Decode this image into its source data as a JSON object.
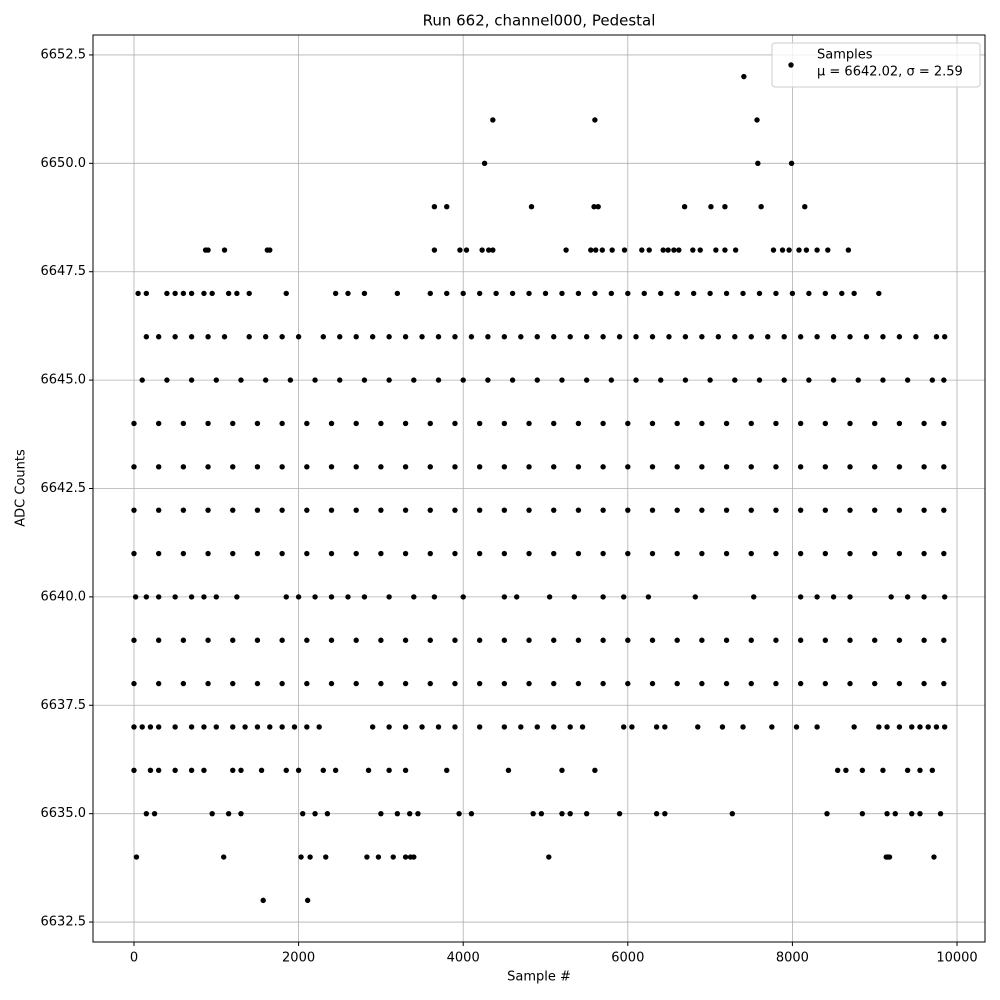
{
  "chart_data": {
    "type": "scatter",
    "title": "Run 662, channel000, Pedestal",
    "x_label": "Sample #",
    "y_label": "ADC Counts",
    "xlim": [
      -498,
      10340
    ],
    "ylim": [
      6632.04,
      6652.96
    ],
    "xticks": [
      0,
      2000,
      4000,
      6000,
      8000,
      10000
    ],
    "yticks": [
      6632.5,
      {
        "value": 6635,
        "label": "6635.0"
      },
      6637.5,
      {
        "value": 6640,
        "label": "6640.0"
      },
      6642.5,
      {
        "value": 6645,
        "label": "6645.0"
      },
      6647.5,
      {
        "value": 6650,
        "label": "6650.0"
      },
      6652.5
    ],
    "grid": true,
    "legend_position": "upper right",
    "legend_stats": "μ = 6642.02, σ = 2.59",
    "series": [
      {
        "name": "Samples",
        "color": "#000000",
        "x": [
          7410,
          4360,
          5600,
          7570,
          4260,
          7580,
          7990,
          3650,
          3800,
          4830,
          5590,
          5640,
          6690,
          7010,
          7180,
          7620,
          8150,
          870,
          900,
          1100,
          1620,
          1650,
          3650,
          3960,
          4040,
          4230,
          4310,
          4360,
          5250,
          5550,
          5610,
          5690,
          5810,
          5960,
          6170,
          6260,
          6430,
          6490,
          6560,
          6620,
          6790,
          6880,
          7070,
          7180,
          7310,
          7770,
          7880,
          7960,
          8080,
          8170,
          8300,
          8430,
          8680,
          50,
          150,
          400,
          500,
          600,
          700,
          850,
          950,
          1150,
          1250,
          1400,
          1850,
          2450,
          2600,
          2800,
          3200,
          3600,
          3800,
          4000,
          4200,
          4400,
          4600,
          4800,
          5000,
          5200,
          5400,
          5600,
          5800,
          6000,
          6200,
          6400,
          6600,
          6800,
          7000,
          7200,
          7400,
          7600,
          7800,
          8000,
          8200,
          8400,
          8600,
          8750,
          9050,
          150,
          300,
          500,
          700,
          900,
          1100,
          1400,
          1600,
          1800,
          2000,
          2300,
          2500,
          2700,
          2900,
          3100,
          3300,
          3500,
          3700,
          3900,
          4100,
          4300,
          4500,
          4700,
          4900,
          5100,
          5300,
          5500,
          5700,
          5900,
          6100,
          6300,
          6500,
          6700,
          6900,
          7100,
          7300,
          7500,
          7700,
          7900,
          8100,
          8300,
          8500,
          8700,
          8900,
          9100,
          9300,
          9500,
          9750,
          9850,
          100,
          400,
          700,
          1000,
          1300,
          1600,
          1900,
          2200,
          2500,
          2800,
          3100,
          3400,
          3700,
          4000,
          4300,
          4600,
          4900,
          5200,
          5500,
          5800,
          6100,
          6400,
          6700,
          7000,
          7300,
          7600,
          7900,
          8200,
          8500,
          8800,
          9100,
          9400,
          9700,
          9840,
          0,
          300,
          600,
          900,
          1200,
          1500,
          1800,
          2100,
          2400,
          2700,
          3000,
          3300,
          3600,
          3900,
          4200,
          4500,
          4800,
          5100,
          5400,
          5700,
          6000,
          6300,
          6600,
          6900,
          7200,
          7500,
          7800,
          8100,
          8400,
          8700,
          9000,
          9300,
          9600,
          9840,
          0,
          300,
          600,
          900,
          1200,
          1500,
          1800,
          2100,
          2400,
          2700,
          3000,
          3300,
          3600,
          3900,
          4200,
          4500,
          4800,
          5100,
          5400,
          5700,
          6000,
          6300,
          6600,
          6900,
          7200,
          7500,
          7800,
          8100,
          8400,
          8700,
          9000,
          9300,
          9600,
          9840,
          0,
          300,
          600,
          900,
          1200,
          1500,
          1800,
          2100,
          2400,
          2700,
          3000,
          3300,
          3600,
          3900,
          4200,
          4500,
          4800,
          5100,
          5400,
          5700,
          6000,
          6300,
          6600,
          6900,
          7200,
          7500,
          7800,
          8100,
          8400,
          8700,
          9000,
          9300,
          9600,
          9840,
          0,
          300,
          600,
          900,
          1200,
          1500,
          1800,
          2100,
          2400,
          2700,
          3000,
          3300,
          3600,
          3900,
          4200,
          4500,
          4800,
          5100,
          5400,
          5700,
          6000,
          6300,
          6600,
          6900,
          7200,
          7500,
          7800,
          8100,
          8400,
          8700,
          9000,
          9300,
          9600,
          9840,
          20,
          150,
          300,
          500,
          700,
          850,
          1000,
          1250,
          1850,
          2000,
          2200,
          2400,
          2600,
          2800,
          3100,
          3400,
          3650,
          4000,
          4500,
          4650,
          5050,
          5350,
          5700,
          5950,
          6250,
          6820,
          7530,
          8100,
          8300,
          8500,
          8700,
          9200,
          9400,
          9600,
          9850,
          0,
          300,
          600,
          900,
          1200,
          1500,
          1800,
          2100,
          2400,
          2700,
          3000,
          3300,
          3600,
          3900,
          4200,
          4500,
          4800,
          5100,
          5400,
          5700,
          6000,
          6300,
          6600,
          6900,
          7200,
          7500,
          7800,
          8100,
          8400,
          8700,
          9000,
          9300,
          9600,
          9840,
          0,
          300,
          600,
          900,
          1200,
          1500,
          1800,
          2100,
          2400,
          2700,
          3000,
          3300,
          3600,
          3900,
          4200,
          4500,
          4800,
          5100,
          5400,
          5700,
          6000,
          6300,
          6600,
          6900,
          7200,
          7500,
          7800,
          8100,
          8400,
          8700,
          9000,
          9300,
          9600,
          9840,
          0,
          100,
          200,
          300,
          500,
          700,
          850,
          1000,
          1200,
          1350,
          1500,
          1650,
          1800,
          1950,
          2100,
          2250,
          2900,
          3100,
          3300,
          3500,
          3700,
          3900,
          4200,
          4500,
          4700,
          4900,
          5100,
          5300,
          5450,
          5950,
          6050,
          6350,
          6450,
          6850,
          7150,
          7400,
          7750,
          8050,
          8300,
          8750,
          9050,
          9150,
          9300,
          9450,
          9550,
          9650,
          9750,
          9850,
          0,
          200,
          300,
          500,
          700,
          850,
          1200,
          1300,
          1550,
          1850,
          2000,
          2300,
          2450,
          2850,
          3100,
          3300,
          3800,
          4550,
          5200,
          5600,
          8550,
          8650,
          8850,
          9100,
          9400,
          9550,
          9700,
          150,
          250,
          950,
          1150,
          1300,
          2050,
          2200,
          2350,
          3000,
          3200,
          3350,
          3450,
          3950,
          4100,
          4850,
          4950,
          5200,
          5300,
          5500,
          5900,
          6350,
          6450,
          7270,
          8420,
          8850,
          9150,
          9250,
          9450,
          9550,
          9800,
          30,
          1090,
          2030,
          2140,
          2330,
          2830,
          2970,
          3150,
          3300,
          3360,
          3400,
          5040,
          9140,
          9160,
          9180,
          9720,
          1570,
          2110
        ],
        "values": [
          6652,
          6651,
          6651,
          6651,
          6650,
          6650,
          6650,
          6649,
          6649,
          6649,
          6649,
          6649,
          6649,
          6649,
          6649,
          6649,
          6649,
          6648,
          6648,
          6648,
          6648,
          6648,
          6648,
          6648,
          6648,
          6648,
          6648,
          6648,
          6648,
          6648,
          6648,
          6648,
          6648,
          6648,
          6648,
          6648,
          6648,
          6648,
          6648,
          6648,
          6648,
          6648,
          6648,
          6648,
          6648,
          6648,
          6648,
          6648,
          6648,
          6648,
          6648,
          6648,
          6648,
          6647,
          6647,
          6647,
          6647,
          6647,
          6647,
          6647,
          6647,
          6647,
          6647,
          6647,
          6647,
          6647,
          6647,
          6647,
          6647,
          6647,
          6647,
          6647,
          6647,
          6647,
          6647,
          6647,
          6647,
          6647,
          6647,
          6647,
          6647,
          6647,
          6647,
          6647,
          6647,
          6647,
          6647,
          6647,
          6647,
          6647,
          6647,
          6647,
          6647,
          6647,
          6647,
          6647,
          6647,
          6646,
          6646,
          6646,
          6646,
          6646,
          6646,
          6646,
          6646,
          6646,
          6646,
          6646,
          6646,
          6646,
          6646,
          6646,
          6646,
          6646,
          6646,
          6646,
          6646,
          6646,
          6646,
          6646,
          6646,
          6646,
          6646,
          6646,
          6646,
          6646,
          6646,
          6646,
          6646,
          6646,
          6646,
          6646,
          6646,
          6646,
          6646,
          6646,
          6646,
          6646,
          6646,
          6646,
          6646,
          6646,
          6646,
          6646,
          6646,
          6646,
          6645,
          6645,
          6645,
          6645,
          6645,
          6645,
          6645,
          6645,
          6645,
          6645,
          6645,
          6645,
          6645,
          6645,
          6645,
          6645,
          6645,
          6645,
          6645,
          6645,
          6645,
          6645,
          6645,
          6645,
          6645,
          6645,
          6645,
          6645,
          6645,
          6645,
          6645,
          6645,
          6645,
          6645,
          6644,
          6644,
          6644,
          6644,
          6644,
          6644,
          6644,
          6644,
          6644,
          6644,
          6644,
          6644,
          6644,
          6644,
          6644,
          6644,
          6644,
          6644,
          6644,
          6644,
          6644,
          6644,
          6644,
          6644,
          6644,
          6644,
          6644,
          6644,
          6644,
          6644,
          6644,
          6644,
          6644,
          6644,
          6643,
          6643,
          6643,
          6643,
          6643,
          6643,
          6643,
          6643,
          6643,
          6643,
          6643,
          6643,
          6643,
          6643,
          6643,
          6643,
          6643,
          6643,
          6643,
          6643,
          6643,
          6643,
          6643,
          6643,
          6643,
          6643,
          6643,
          6643,
          6643,
          6643,
          6643,
          6643,
          6643,
          6643,
          6642,
          6642,
          6642,
          6642,
          6642,
          6642,
          6642,
          6642,
          6642,
          6642,
          6642,
          6642,
          6642,
          6642,
          6642,
          6642,
          6642,
          6642,
          6642,
          6642,
          6642,
          6642,
          6642,
          6642,
          6642,
          6642,
          6642,
          6642,
          6642,
          6642,
          6642,
          6642,
          6642,
          6642,
          6641,
          6641,
          6641,
          6641,
          6641,
          6641,
          6641,
          6641,
          6641,
          6641,
          6641,
          6641,
          6641,
          6641,
          6641,
          6641,
          6641,
          6641,
          6641,
          6641,
          6641,
          6641,
          6641,
          6641,
          6641,
          6641,
          6641,
          6641,
          6641,
          6641,
          6641,
          6641,
          6641,
          6641,
          6640,
          6640,
          6640,
          6640,
          6640,
          6640,
          6640,
          6640,
          6640,
          6640,
          6640,
          6640,
          6640,
          6640,
          6640,
          6640,
          6640,
          6640,
          6640,
          6640,
          6640,
          6640,
          6640,
          6640,
          6640,
          6640,
          6640,
          6640,
          6640,
          6640,
          6640,
          6640,
          6640,
          6640,
          6640,
          6639,
          6639,
          6639,
          6639,
          6639,
          6639,
          6639,
          6639,
          6639,
          6639,
          6639,
          6639,
          6639,
          6639,
          6639,
          6639,
          6639,
          6639,
          6639,
          6639,
          6639,
          6639,
          6639,
          6639,
          6639,
          6639,
          6639,
          6639,
          6639,
          6639,
          6639,
          6639,
          6639,
          6639,
          6638,
          6638,
          6638,
          6638,
          6638,
          6638,
          6638,
          6638,
          6638,
          6638,
          6638,
          6638,
          6638,
          6638,
          6638,
          6638,
          6638,
          6638,
          6638,
          6638,
          6638,
          6638,
          6638,
          6638,
          6638,
          6638,
          6638,
          6638,
          6638,
          6638,
          6638,
          6638,
          6638,
          6638,
          6637,
          6637,
          6637,
          6637,
          6637,
          6637,
          6637,
          6637,
          6637,
          6637,
          6637,
          6637,
          6637,
          6637,
          6637,
          6637,
          6637,
          6637,
          6637,
          6637,
          6637,
          6637,
          6637,
          6637,
          6637,
          6637,
          6637,
          6637,
          6637,
          6637,
          6637,
          6637,
          6637,
          6637,
          6637,
          6637,
          6637,
          6637,
          6637,
          6637,
          6637,
          6637,
          6637,
          6637,
          6637,
          6637,
          6637,
          6637,
          6636,
          6636,
          6636,
          6636,
          6636,
          6636,
          6636,
          6636,
          6636,
          6636,
          6636,
          6636,
          6636,
          6636,
          6636,
          6636,
          6636,
          6636,
          6636,
          6636,
          6636,
          6636,
          6636,
          6636,
          6636,
          6636,
          6636,
          6635,
          6635,
          6635,
          6635,
          6635,
          6635,
          6635,
          6635,
          6635,
          6635,
          6635,
          6635,
          6635,
          6635,
          6635,
          6635,
          6635,
          6635,
          6635,
          6635,
          6635,
          6635,
          6635,
          6635,
          6635,
          6635,
          6635,
          6635,
          6635,
          6635,
          6634,
          6634,
          6634,
          6634,
          6634,
          6634,
          6634,
          6634,
          6634,
          6634,
          6634,
          6634,
          6634,
          6634,
          6634,
          6634,
          6633,
          6633
        ]
      }
    ]
  }
}
